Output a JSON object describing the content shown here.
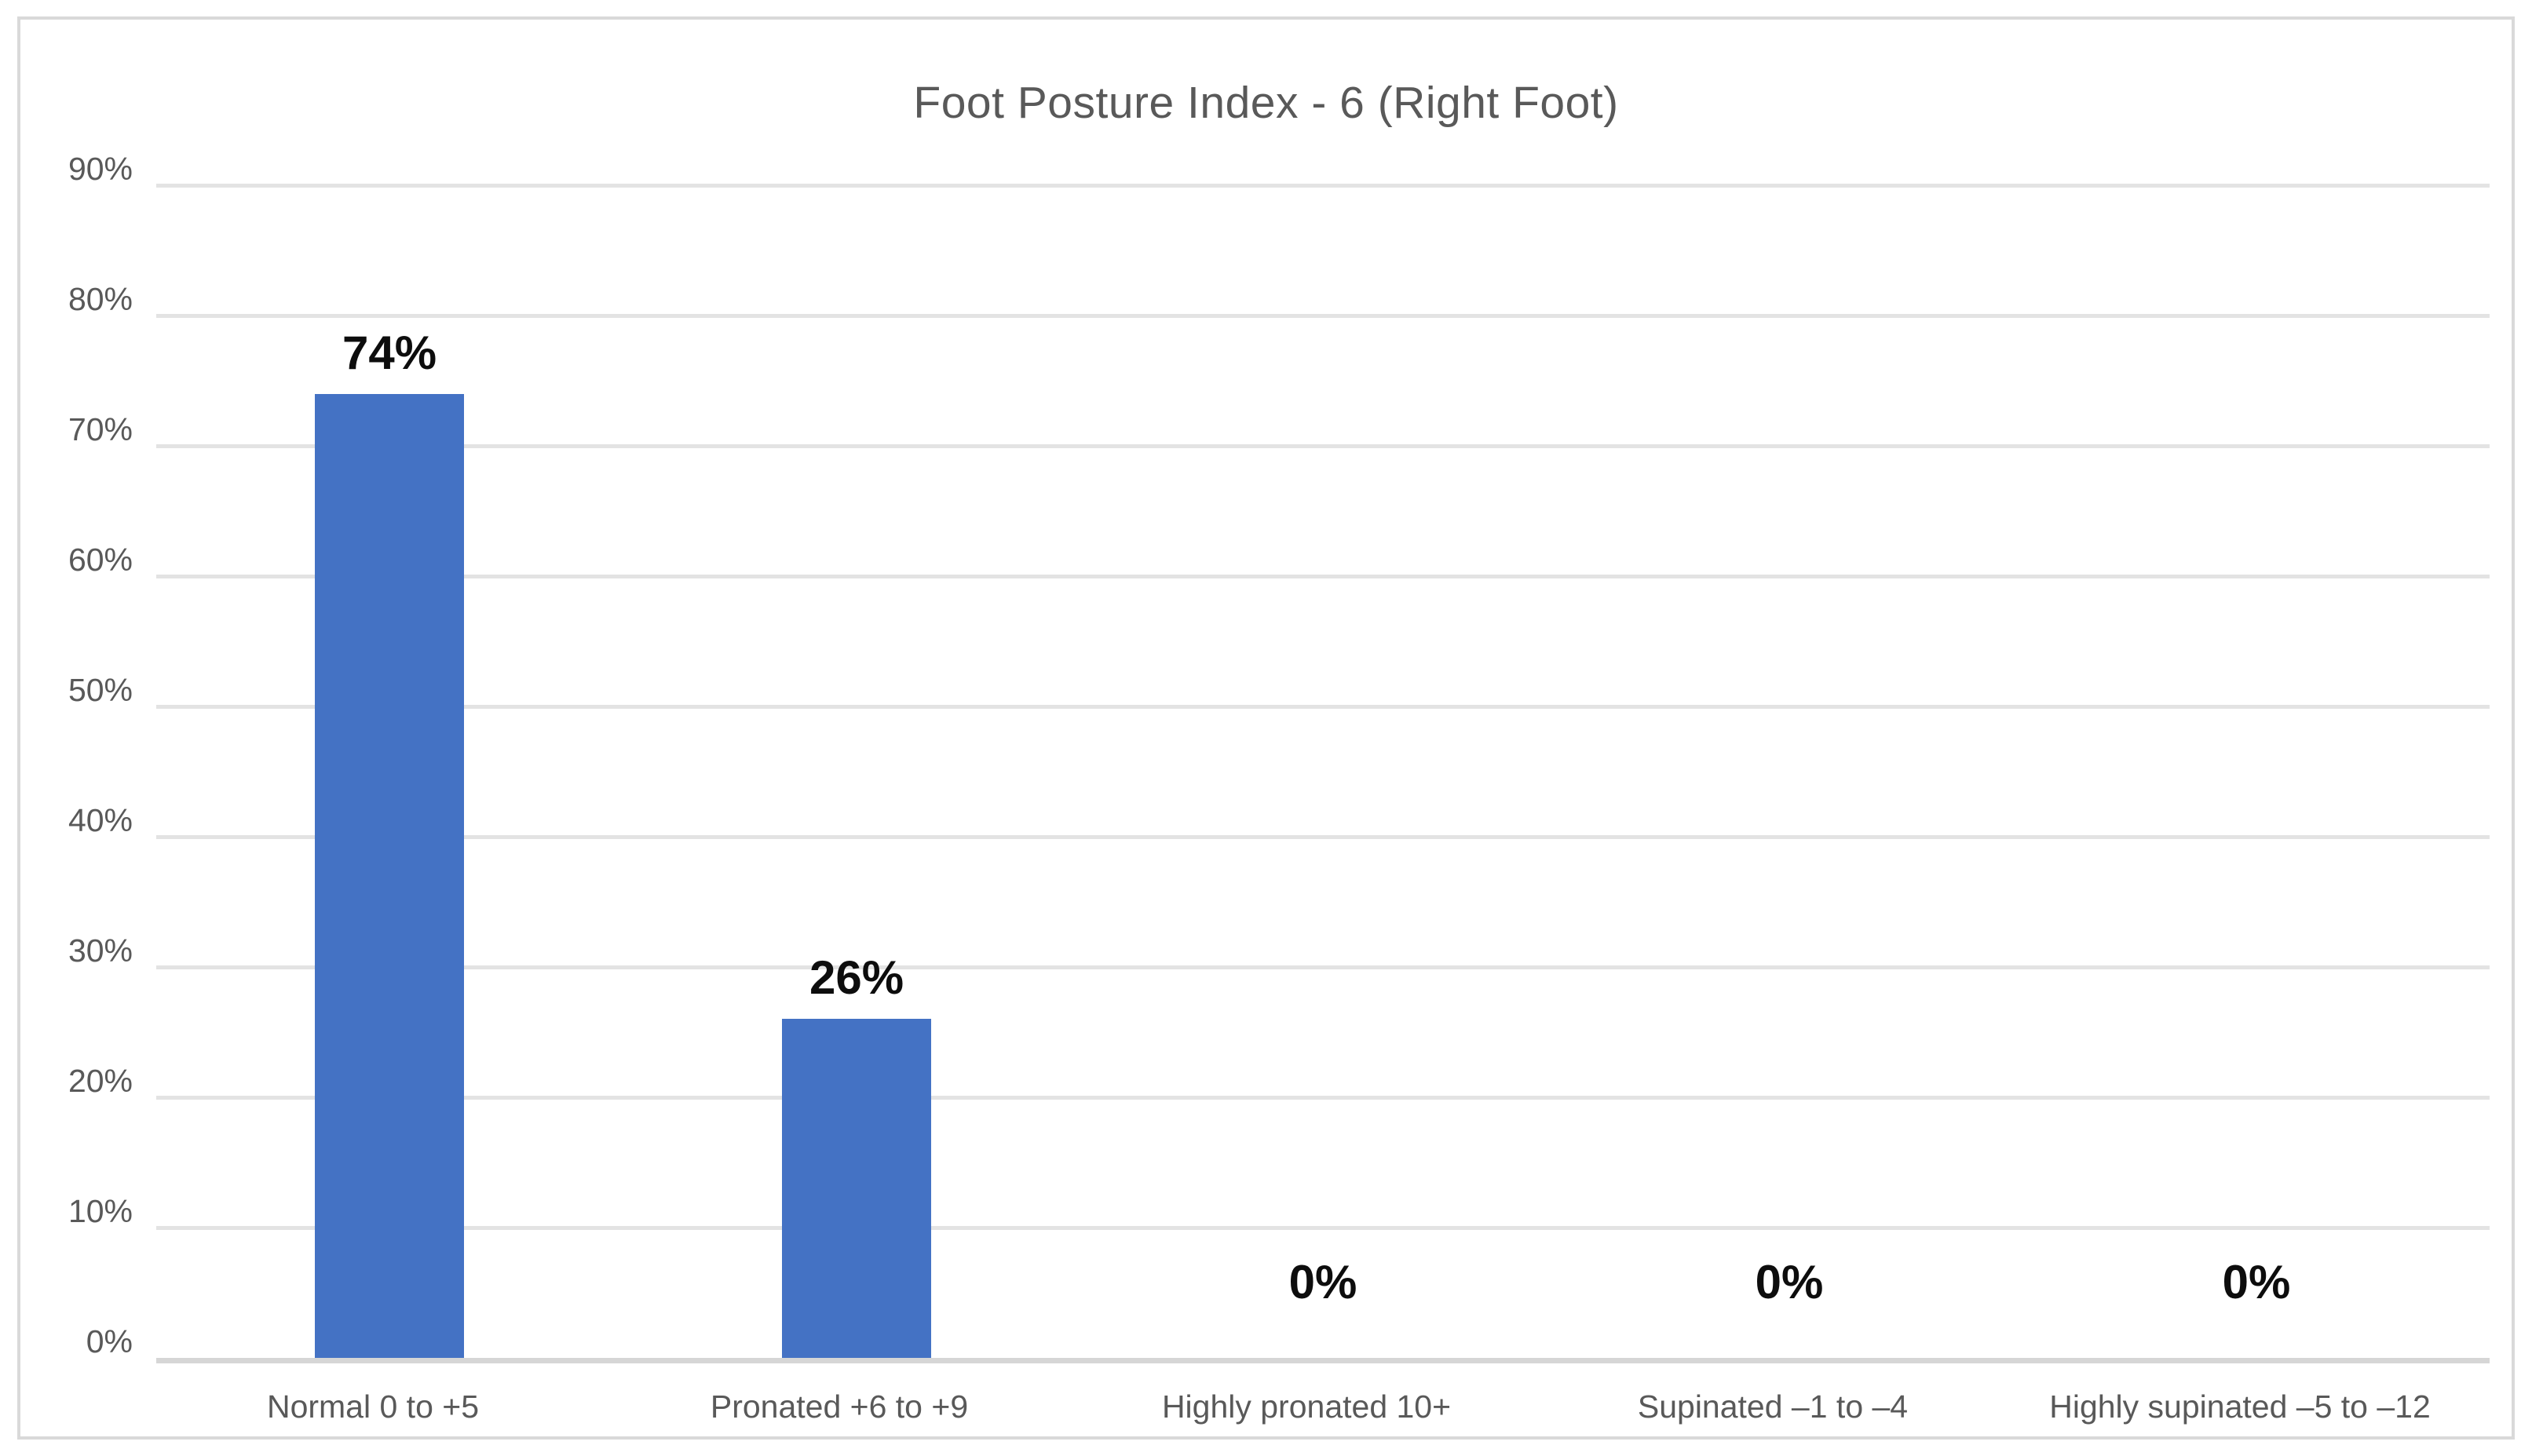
{
  "chart_data": {
    "type": "bar",
    "title": "Foot Posture Index - 6 (Right Foot)",
    "categories": [
      "Normal 0 to +5",
      "Pronated +6 to +9",
      "Highly pronated 10+",
      "Supinated –1 to –4",
      "Highly supinated –5 to –12"
    ],
    "values": [
      74,
      26,
      0,
      0,
      0
    ],
    "data_labels": [
      "74%",
      "26%",
      "0%",
      "0%",
      "0%"
    ],
    "y_ticks": [
      "0%",
      "10%",
      "20%",
      "30%",
      "40%",
      "50%",
      "60%",
      "70%",
      "80%",
      "90%"
    ],
    "y_tick_step": 10,
    "ylim": [
      0,
      90
    ],
    "xlabel": "",
    "ylabel": "",
    "grid": true,
    "legend": false,
    "colors": {
      "bar": "#4472C4",
      "gridline": "#E3E3E3",
      "axis_line": "#D6D6D6",
      "frame_border": "#D9D9D9",
      "title_text": "#595959",
      "tick_text": "#595959",
      "value_label_text": "#0d0d0d",
      "background": "#FFFFFF"
    }
  }
}
